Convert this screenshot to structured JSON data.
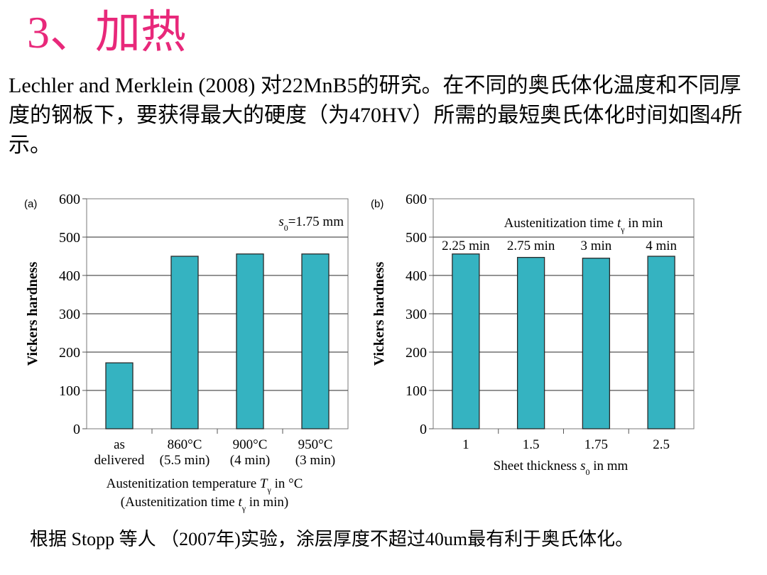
{
  "slide": {
    "title": "3、加热",
    "intro": "Lechler and Merklein (2008) 对22MnB5的研究。在不同的奥氏体化温度和不同厚度的钢板下，要获得最大的硬度（为470HV）所需的最短奥氏体化时间如图4所示。",
    "footer": "根据 Stopp 等人 （2007年)实验，涂层厚度不超过40um最有利于奥氏体化。"
  },
  "chart_data": [
    {
      "panel": "(a)",
      "type": "bar",
      "ylabel": "Vickers hardness",
      "ylim": [
        0,
        600
      ],
      "yticks": [
        "0",
        "100",
        "200",
        "300",
        "400",
        "500",
        "600"
      ],
      "annotation": "s0=1.75 mm",
      "categories": [
        [
          "as",
          "delivered"
        ],
        [
          "860°C",
          "(5.5 min)"
        ],
        [
          "900°C",
          "(4 min)"
        ],
        [
          "950°C",
          "(3 min)"
        ]
      ],
      "values": [
        172,
        450,
        456,
        456
      ],
      "xlabel": [
        "Austenitization temperature Tγ in °C",
        "(Austenitization time tγ in min)"
      ],
      "grid": true,
      "bar_color": "#35b3c1"
    },
    {
      "panel": "(b)",
      "type": "bar",
      "ylabel": "Vickers hardness",
      "ylim": [
        0,
        600
      ],
      "yticks": [
        "0",
        "100",
        "200",
        "300",
        "400",
        "500",
        "600"
      ],
      "header": "Austenitization time tγ in min",
      "bar_labels": [
        "2.25 min",
        "2.75 min",
        "3 min",
        "4 min"
      ],
      "categories": [
        "1",
        "1.5",
        "1.75",
        "2.5"
      ],
      "values": [
        456,
        447,
        445,
        450
      ],
      "xlabel": "Sheet thickness s0 in mm",
      "grid": true,
      "bar_color": "#35b3c1"
    }
  ]
}
